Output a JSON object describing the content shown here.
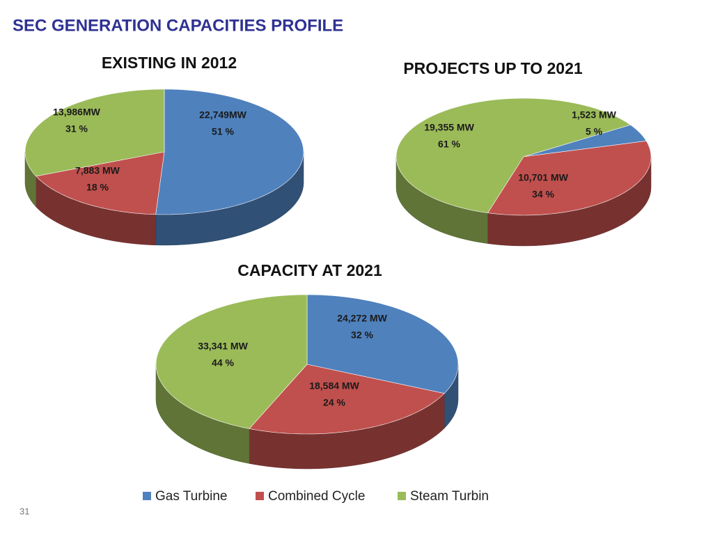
{
  "title": "SEC GENERATION CAPACITIES PROFILE",
  "page_number": "31",
  "chart_data": [
    {
      "type": "pie",
      "title": "EXISTING IN 2012",
      "categories": [
        "Gas Turbine",
        "Combined Cycle",
        "Steam Turbin"
      ],
      "colors": [
        "#4f81bd",
        "#c0504d",
        "#9bbb59"
      ],
      "values": [
        22749,
        7883,
        13986
      ],
      "value_labels": [
        "22,749MW",
        "7,883 MW",
        "13,986MW"
      ],
      "percent_labels": [
        "51 %",
        "18 %",
        "31 %"
      ]
    },
    {
      "type": "pie",
      "title": "PROJECTS UP TO 2021",
      "categories": [
        "Gas Turbine",
        "Combined Cycle",
        "Steam Turbin"
      ],
      "colors": [
        "#4f81bd",
        "#c0504d",
        "#9bbb59"
      ],
      "values": [
        1523,
        10701,
        19355
      ],
      "value_labels": [
        "1,523 MW",
        "10,701 MW",
        "19,355 MW"
      ],
      "percent_labels": [
        "5 %",
        "34 %",
        "61 %"
      ]
    },
    {
      "type": "pie",
      "title": "CAPACITY AT 2021",
      "categories": [
        "Gas Turbine",
        "Combined Cycle",
        "Steam Turbin"
      ],
      "colors": [
        "#4f81bd",
        "#c0504d",
        "#9bbb59"
      ],
      "values": [
        24272,
        18584,
        33341
      ],
      "value_labels": [
        "24,272 MW",
        "18,584 MW",
        "33,341 MW"
      ],
      "percent_labels": [
        "32 %",
        "24 %",
        "44 %"
      ]
    }
  ]
}
